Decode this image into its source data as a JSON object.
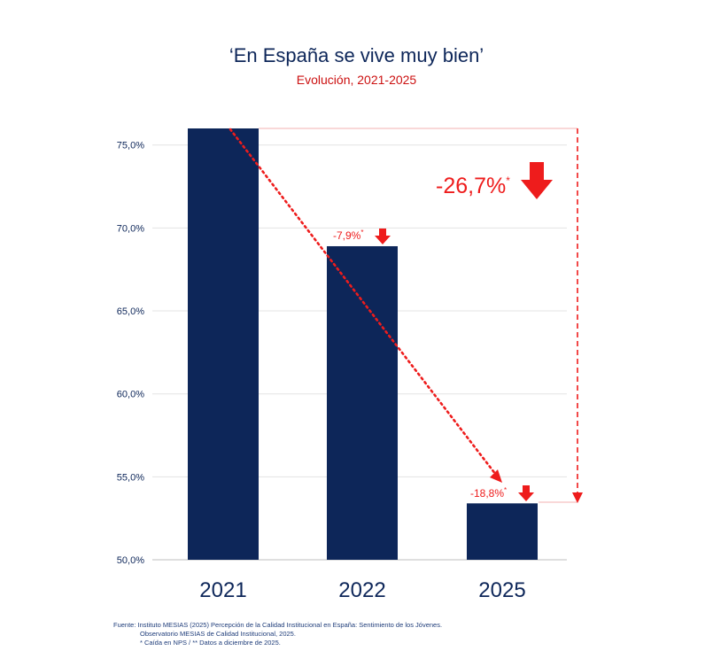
{
  "chart_data": {
    "type": "bar",
    "title": "‘En España se vive muy bien’",
    "subtitle": "Evolución, 2021-2025",
    "categories": [
      "2021",
      "2022",
      "2025"
    ],
    "values": [
      76.0,
      68.9,
      53.4
    ],
    "ylim": [
      50,
      76
    ],
    "yticks": [
      "50,0%",
      "55,0%",
      "60,0%",
      "65,0%",
      "70,0%",
      "75,0%"
    ],
    "ytick_values": [
      50,
      55,
      60,
      65,
      70,
      75
    ],
    "bar_color": "#0d2659",
    "accent_color": "#ee1c1c",
    "annotations": {
      "change_2022": "-7,9%",
      "change_2025": "-18,8%",
      "total_change": "-26,7%",
      "asterisk": "*"
    }
  },
  "footer": {
    "source": "Fuente: Instituto MESIAS (2025) Percepción de la Calidad Institucional en España: Sentimiento de los Jóvenes.",
    "source2": "Observatorio MESIAS de Calidad Institucional, 2025.",
    "notes": "* Caída en NPS / ** Datos a diciembre de 2025."
  }
}
